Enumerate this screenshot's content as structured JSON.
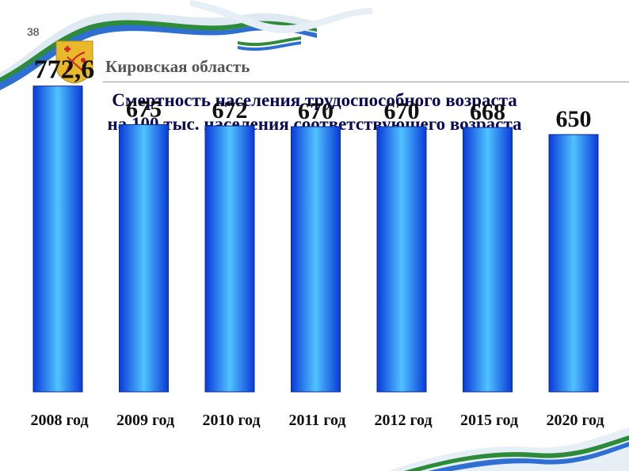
{
  "page_number": "38",
  "header": {
    "region": "Кировская область"
  },
  "colors": {
    "bar_light": "#4fc3ff",
    "bar_dark": "#0a3ad8",
    "ribbon_green": "#2e8b3a",
    "ribbon_blue": "#2f6fd1",
    "emblem_gold": "#e8b92a",
    "emblem_red": "#d3232a"
  },
  "chart_data": {
    "type": "bar",
    "title": "Смертность населения трудоспособного возраста на 100 тыс. населения соответствующего возраста",
    "title_lines": [
      "Смертность населения трудоспособного возраста",
      "на 100 тыс. населения соответствующего возраста"
    ],
    "categories": [
      "2008 год",
      "2009 год",
      "2010 год",
      "2011 год",
      "2012 год",
      "2015 год",
      "2020 год"
    ],
    "values": [
      772.6,
      675,
      672,
      670,
      670,
      668,
      650
    ],
    "value_labels": [
      "772,6",
      "675",
      "672",
      "670",
      "670",
      "668",
      "650"
    ],
    "xlabel": "",
    "ylabel": "",
    "grid": false,
    "legend": "none"
  }
}
